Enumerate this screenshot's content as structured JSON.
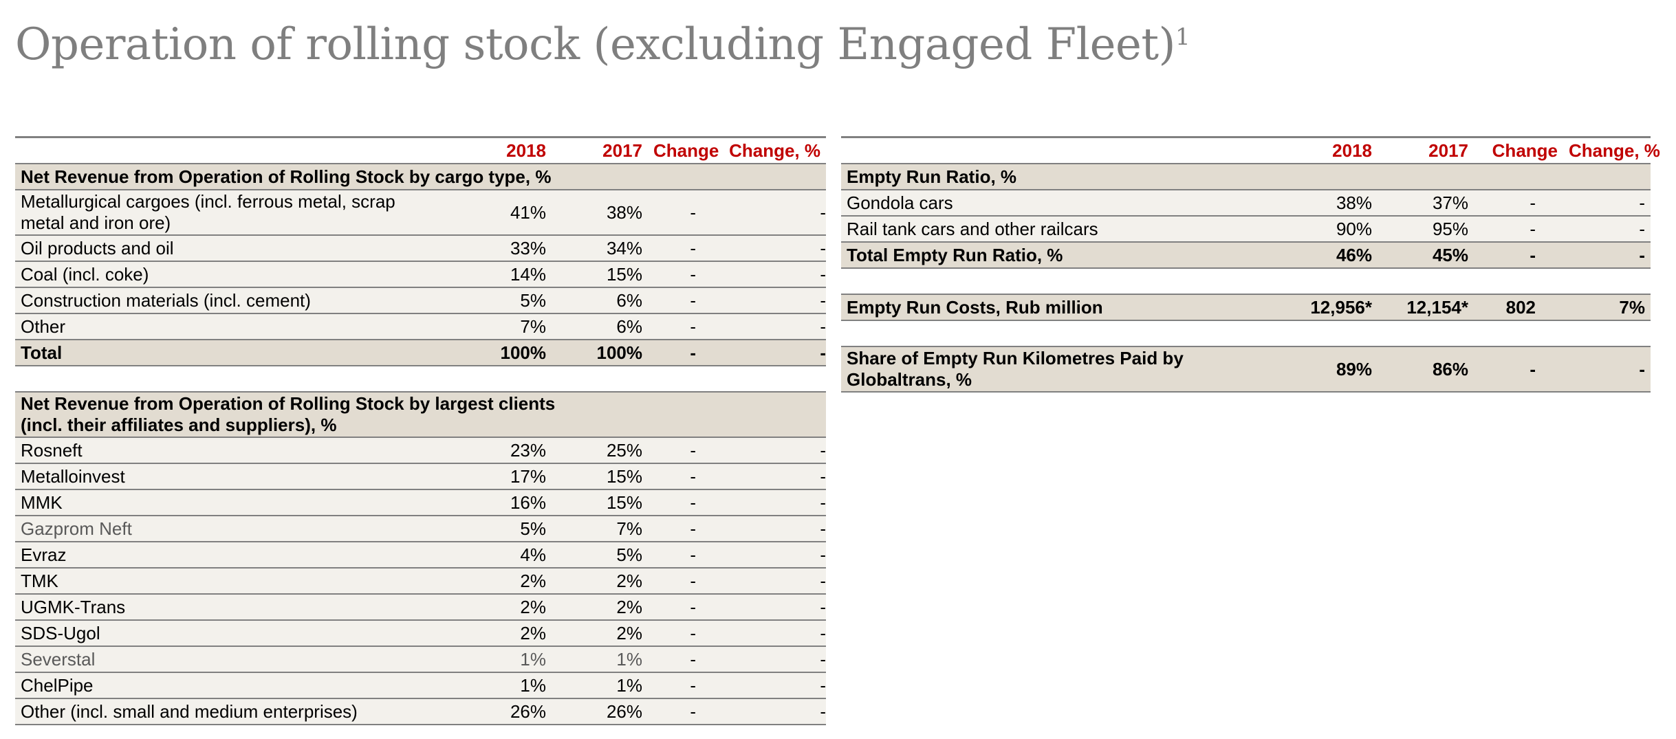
{
  "title": "Operation of rolling stock (excluding Engaged Fleet)",
  "title_footnote": "1",
  "headers": {
    "y2018": "2018",
    "y2017": "2017",
    "change": "Change",
    "change_pct": "Change, %"
  },
  "left": {
    "cargo_section": "Net Revenue from Operation of Rolling Stock by cargo type, %",
    "cargo_rows": [
      {
        "label": "Metallurgical cargoes (incl. ferrous metal, scrap metal and iron ore)",
        "y2018": "41%",
        "y2017": "38%",
        "change": "-",
        "change_pct": "-"
      },
      {
        "label": "Oil products and oil",
        "y2018": "33%",
        "y2017": "34%",
        "change": "-",
        "change_pct": "-"
      },
      {
        "label": "Coal (incl. coke)",
        "y2018": "14%",
        "y2017": "15%",
        "change": "-",
        "change_pct": "-"
      },
      {
        "label": "Construction materials (incl. cement)",
        "y2018": "5%",
        "y2017": "6%",
        "change": "-",
        "change_pct": "-"
      },
      {
        "label": "Other",
        "y2018": "7%",
        "y2017": "6%",
        "change": "-",
        "change_pct": "-"
      }
    ],
    "cargo_total": {
      "label": "Total",
      "y2018": "100%",
      "y2017": "100%",
      "change": "-",
      "change_pct": "-"
    },
    "clients_section": "Net Revenue from Operation of Rolling Stock by largest clients (incl. their affiliates and suppliers), %",
    "client_rows": [
      {
        "label": "Rosneft",
        "y2018": "23%",
        "y2017": "25%",
        "change": "-",
        "change_pct": "-"
      },
      {
        "label": "Metalloinvest",
        "y2018": "17%",
        "y2017": "15%",
        "change": "-",
        "change_pct": "-"
      },
      {
        "label": "MMK",
        "y2018": "16%",
        "y2017": "15%",
        "change": "-",
        "change_pct": "-"
      },
      {
        "label": "Gazprom Neft",
        "y2018": "5%",
        "y2017": "7%",
        "change": "-",
        "change_pct": "-"
      },
      {
        "label": "Evraz",
        "y2018": "4%",
        "y2017": "5%",
        "change": "-",
        "change_pct": "-"
      },
      {
        "label": "TMK",
        "y2018": "2%",
        "y2017": "2%",
        "change": "-",
        "change_pct": "-"
      },
      {
        "label": "UGMK-Trans",
        "y2018": "2%",
        "y2017": "2%",
        "change": "-",
        "change_pct": "-"
      },
      {
        "label": "SDS-Ugol",
        "y2018": "2%",
        "y2017": "2%",
        "change": "-",
        "change_pct": "-"
      },
      {
        "label": "Severstal",
        "y2018": "1%",
        "y2017": "1%",
        "change": "-",
        "change_pct": "-"
      },
      {
        "label": "ChelPipe",
        "y2018": "1%",
        "y2017": "1%",
        "change": "-",
        "change_pct": "-"
      },
      {
        "label": "Other (incl. small and medium enterprises)",
        "y2018": "26%",
        "y2017": "26%",
        "change": "-",
        "change_pct": "-"
      }
    ]
  },
  "right": {
    "empty_run_section": "Empty Run Ratio, %",
    "empty_run_rows": [
      {
        "label": "Gondola cars",
        "y2018": "38%",
        "y2017": "37%",
        "change": "-",
        "change_pct": "-"
      },
      {
        "label": "Rail tank cars and other railcars",
        "y2018": "90%",
        "y2017": "95%",
        "change": "-",
        "change_pct": "-"
      }
    ],
    "empty_run_total": {
      "label": "Total Empty Run Ratio, %",
      "y2018": "46%",
      "y2017": "45%",
      "change": "-",
      "change_pct": "-"
    },
    "empty_run_costs": {
      "label": "Empty Run Costs, Rub million",
      "y2018": "12,956*",
      "y2017": "12,154*",
      "change": "802",
      "change_pct": "7%"
    },
    "share_km": {
      "label": "Share of Empty Run Kilometres Paid by Globaltrans, %",
      "y2018": "89%",
      "y2017": "86%",
      "change": "-",
      "change_pct": "-"
    }
  }
}
